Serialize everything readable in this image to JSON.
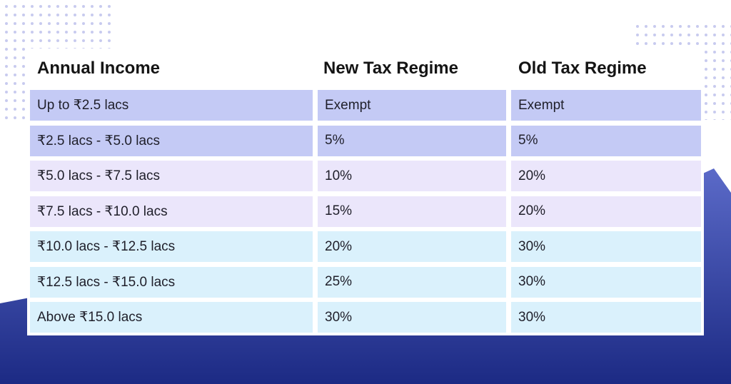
{
  "colors": {
    "wave_dark": "#1c2a84",
    "wave_light": "#5b6ac8",
    "dots": "#c8cbef",
    "row_blue": "#c4caf5",
    "row_lilac": "#ebe6fb",
    "row_sky": "#daf1fc"
  },
  "table": {
    "headers": [
      "Annual Income",
      "New Tax Regime",
      "Old Tax Regime"
    ],
    "rows": [
      {
        "tone": "blue",
        "cells": [
          "Up to ₹2.5 lacs",
          "Exempt",
          "Exempt"
        ]
      },
      {
        "tone": "blue",
        "cells": [
          "₹2.5 lacs - ₹5.0 lacs",
          "5%",
          "5%"
        ]
      },
      {
        "tone": "lilac",
        "cells": [
          "₹5.0 lacs - ₹7.5 lacs",
          "10%",
          "20%"
        ]
      },
      {
        "tone": "lilac",
        "cells": [
          "₹7.5 lacs - ₹10.0 lacs",
          "15%",
          "20%"
        ]
      },
      {
        "tone": "sky",
        "cells": [
          "₹10.0 lacs - ₹12.5 lacs",
          "20%",
          "30%"
        ]
      },
      {
        "tone": "sky",
        "cells": [
          "₹12.5 lacs - ₹15.0 lacs",
          "25%",
          "30%"
        ]
      },
      {
        "tone": "sky",
        "cells": [
          "Above ₹15.0 lacs",
          "30%",
          "30%"
        ]
      }
    ]
  }
}
